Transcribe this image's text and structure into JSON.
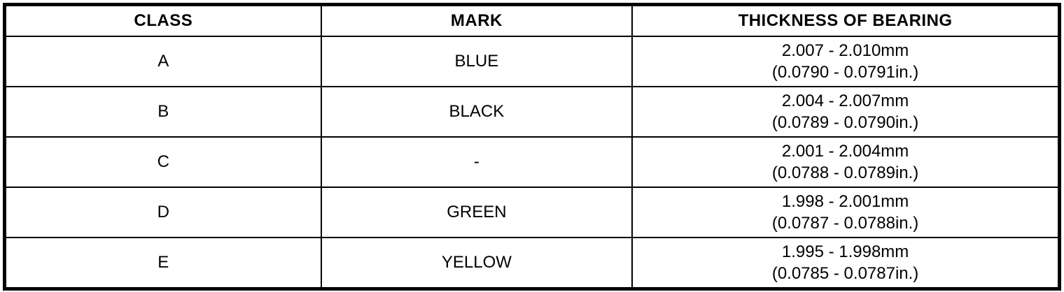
{
  "colors": {
    "border": "#000000",
    "background": "#ffffff",
    "text": "#000000"
  },
  "table": {
    "columns": [
      "CLASS",
      "MARK",
      "THICKNESS OF BEARING"
    ],
    "rows": [
      {
        "class": "A",
        "mark": "BLUE",
        "thickness_mm": "2.007 - 2.010mm",
        "thickness_in": "(0.0790 - 0.0791in.)"
      },
      {
        "class": "B",
        "mark": "BLACK",
        "thickness_mm": "2.004 - 2.007mm",
        "thickness_in": "(0.0789 - 0.0790in.)"
      },
      {
        "class": "C",
        "mark": "-",
        "thickness_mm": "2.001 - 2.004mm",
        "thickness_in": "(0.0788 - 0.0789in.)"
      },
      {
        "class": "D",
        "mark": "GREEN",
        "thickness_mm": "1.998 - 2.001mm",
        "thickness_in": "(0.0787 - 0.0788in.)"
      },
      {
        "class": "E",
        "mark": "YELLOW",
        "thickness_mm": "1.995 - 1.998mm",
        "thickness_in": "(0.0785 - 0.0787in.)"
      }
    ]
  }
}
